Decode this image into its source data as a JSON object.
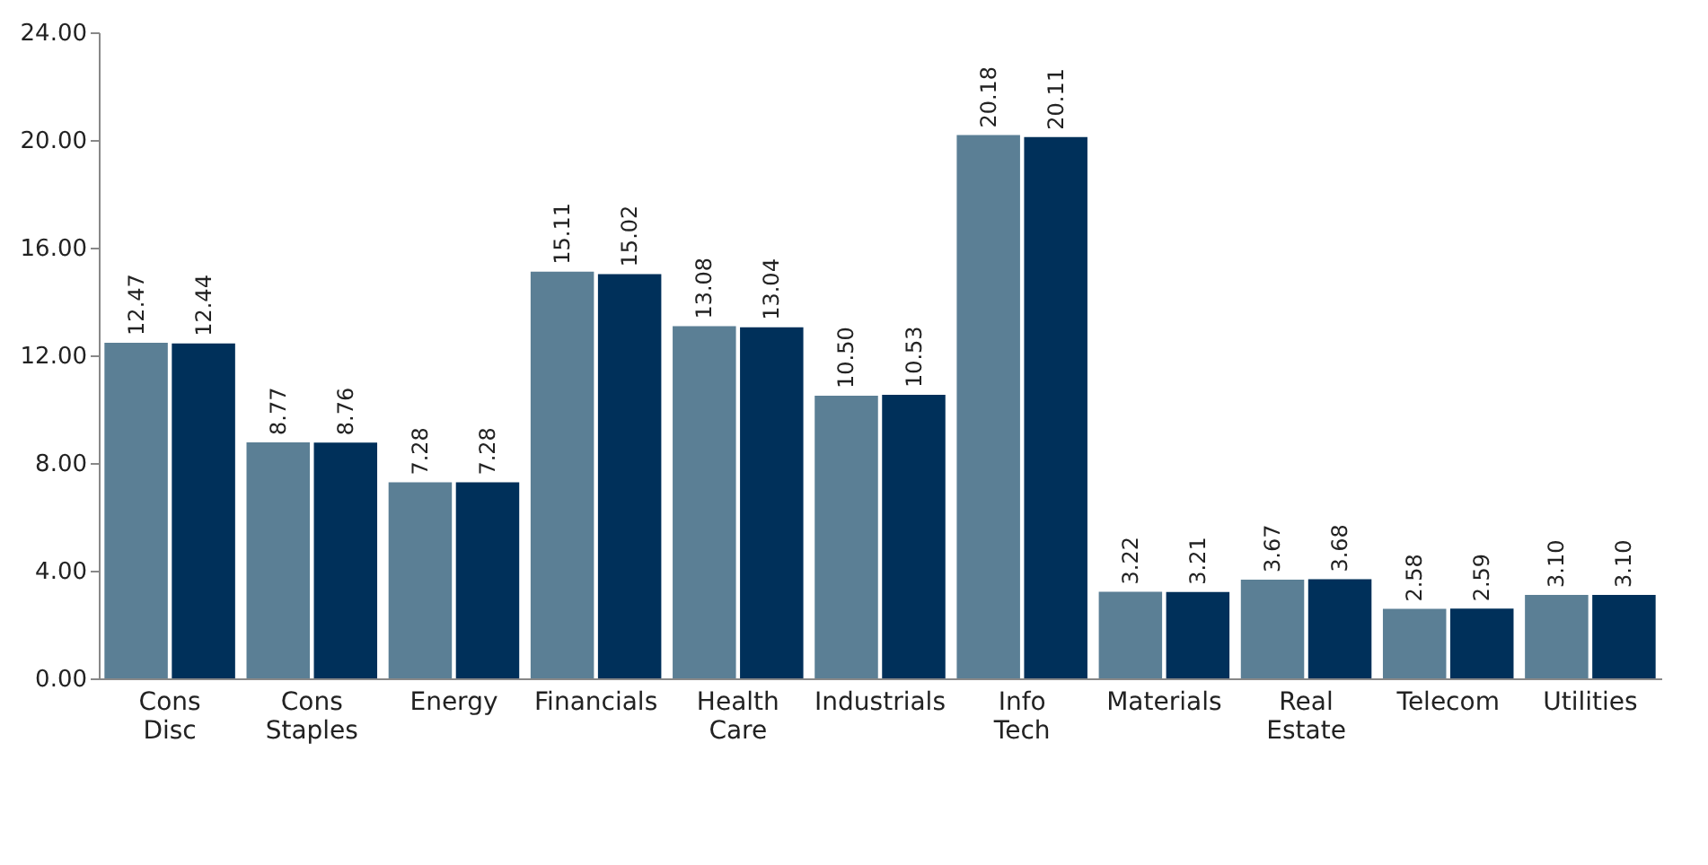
{
  "chart_data": {
    "type": "bar",
    "categories": [
      "Cons Disc",
      "Cons Staples",
      "Energy",
      "Financials",
      "Health Care",
      "Industrials",
      "Info Tech",
      "Materials",
      "Real Estate",
      "Telecom",
      "Utilities"
    ],
    "series": [
      {
        "color": "#5b7f95",
        "values": [
          12.47,
          8.77,
          7.28,
          15.11,
          13.08,
          10.5,
          20.18,
          3.22,
          3.67,
          2.58,
          3.1
        ],
        "value_labels": [
          "12.47",
          "8.77",
          "7.28",
          "15.11",
          "13.08",
          "10.50",
          "20.18",
          "3.22",
          "3.67",
          "2.58",
          "3.10"
        ]
      },
      {
        "color": "#00305a",
        "values": [
          12.44,
          8.76,
          7.28,
          15.02,
          13.04,
          10.53,
          20.11,
          3.21,
          3.68,
          2.59,
          3.1
        ],
        "value_labels": [
          "12.44",
          "8.76",
          "7.28",
          "15.02",
          "13.04",
          "10.53",
          "20.11",
          "3.21",
          "3.68",
          "2.59",
          "3.10"
        ]
      }
    ],
    "ylim": [
      0,
      24
    ],
    "yticks": [
      {
        "value": 0,
        "label": "0.00"
      },
      {
        "value": 4,
        "label": "4.00"
      },
      {
        "value": 8,
        "label": "8.00"
      },
      {
        "value": 12,
        "label": "12.00"
      },
      {
        "value": 16,
        "label": "16.00"
      },
      {
        "value": 20,
        "label": "20.00"
      },
      {
        "value": 24,
        "label": "24.00"
      }
    ],
    "grid": false,
    "legend": false
  }
}
